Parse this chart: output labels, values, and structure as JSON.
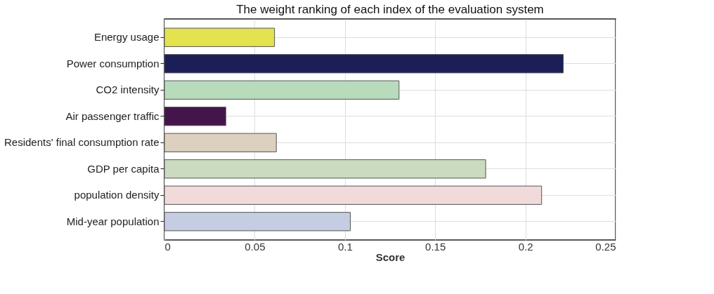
{
  "chart_data": {
    "type": "bar",
    "orientation": "horizontal",
    "title": "The weight ranking of each index of the evaluation system",
    "xlabel": "Score",
    "categories": [
      "Energy usage",
      "Power consumption",
      "CO2 intensity",
      "Air passenger traffic",
      "Residents' final consumption rate",
      "GDP per capita",
      "population density",
      "Mid-year population"
    ],
    "values": [
      0.061,
      0.221,
      0.13,
      0.034,
      0.062,
      0.178,
      0.209,
      0.103
    ],
    "colors": [
      "#e3e24f",
      "#1c1f57",
      "#b7dbbb",
      "#44154a",
      "#dcd0bf",
      "#cbdbbf",
      "#f1dada",
      "#c5cde2"
    ],
    "xlim": [
      0,
      0.25
    ],
    "xticks": [
      0,
      0.05,
      0.1,
      0.15,
      0.2,
      0.25
    ],
    "grid": true
  }
}
